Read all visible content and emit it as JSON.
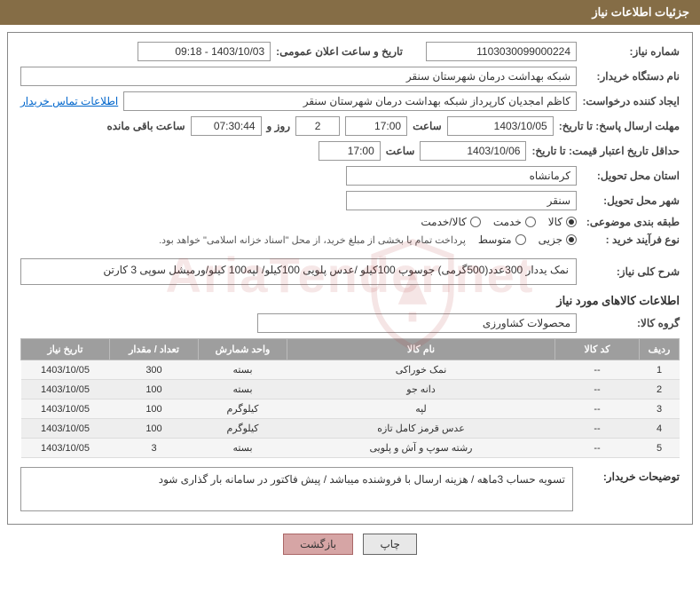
{
  "header": "جزئیات اطلاعات نیاز",
  "labels": {
    "need_no": "شماره نیاز:",
    "announce": "تاریخ و ساعت اعلان عمومی:",
    "buyer_org": "نام دستگاه خریدار:",
    "requester": "ایجاد کننده درخواست:",
    "contact": "اطلاعات تماس خریدار",
    "reply_deadline": "مهلت ارسال پاسخ: تا تاریخ:",
    "hour": "ساعت",
    "days_and": "روز و",
    "remaining": "ساعت باقی مانده",
    "price_validity": "حداقل تاریخ اعتبار قیمت: تا تاریخ:",
    "province": "استان محل تحویل:",
    "city": "شهر محل تحویل:",
    "category": "طبقه بندی موضوعی:",
    "purchase_type": "نوع فرآیند خرید :",
    "purchase_note": "پرداخت تمام یا بخشی از مبلغ خرید، از محل \"اسناد خزانه اسلامی\" خواهد بود.",
    "overall_desc": "شرح کلی نیاز:",
    "items_title": "اطلاعات کالاهای مورد نیاز",
    "group": "گروه کالا:",
    "buyer_note": "توضیحات خریدار:"
  },
  "fields": {
    "need_no": "1103030099000224",
    "announce": "1403/10/03 - 09:18",
    "buyer_org": "شبکه بهداشت درمان شهرستان سنقر",
    "requester": "کاظم امجدیان کارپرداز شبکه بهداشت درمان شهرستان سنقر",
    "reply_date": "1403/10/05",
    "reply_time": "17:00",
    "days_left": "2",
    "time_left": "07:30:44",
    "price_date": "1403/10/06",
    "price_time": "17:00",
    "province": "کرمانشاه",
    "city": "سنقر",
    "overall_desc": "نمک یددار 300عدد(500گرمی) جوسوپ 100کیلو /عدس پلویی 100کیلو/ لپه100 کیلو/ورمیشل سوپی 3 کارتن",
    "group": "محصولات کشاورزی",
    "buyer_note": "تسویه حساب 3ماهه / هزینه ارسال با فروشنده میباشد / پیش فاکتور در سامانه بار گذاری شود"
  },
  "category_opts": {
    "o1": "کالا",
    "o2": "خدمت",
    "o3": "کالا/خدمت",
    "selected": "o1"
  },
  "purchase_opts": {
    "o1": "جزیی",
    "o2": "متوسط",
    "selected": "o1"
  },
  "table": {
    "headers": {
      "row": "ردیف",
      "code": "کد کالا",
      "name": "نام کالا",
      "unit": "واحد شمارش",
      "qty": "تعداد / مقدار",
      "date": "تاریخ نیاز"
    },
    "rows": [
      {
        "n": "1",
        "code": "--",
        "name": "نمک خوراکی",
        "unit": "بسته",
        "qty": "300",
        "date": "1403/10/05"
      },
      {
        "n": "2",
        "code": "--",
        "name": "دانه جو",
        "unit": "بسته",
        "qty": "100",
        "date": "1403/10/05"
      },
      {
        "n": "3",
        "code": "--",
        "name": "لپه",
        "unit": "کیلوگرم",
        "qty": "100",
        "date": "1403/10/05"
      },
      {
        "n": "4",
        "code": "--",
        "name": "عدس قرمز کامل تازه",
        "unit": "کیلوگرم",
        "qty": "100",
        "date": "1403/10/05"
      },
      {
        "n": "5",
        "code": "--",
        "name": "رشته سوپ و آش و پلویی",
        "unit": "بسته",
        "qty": "3",
        "date": "1403/10/05"
      }
    ]
  },
  "buttons": {
    "print": "چاپ",
    "back": "بازگشت"
  },
  "watermark": "AriaTender.net",
  "colors": {
    "header_bg": "#856d46",
    "th_bg": "#9e9e9e",
    "link": "#0066cc",
    "btn_back_bg": "#d6a5a5"
  }
}
